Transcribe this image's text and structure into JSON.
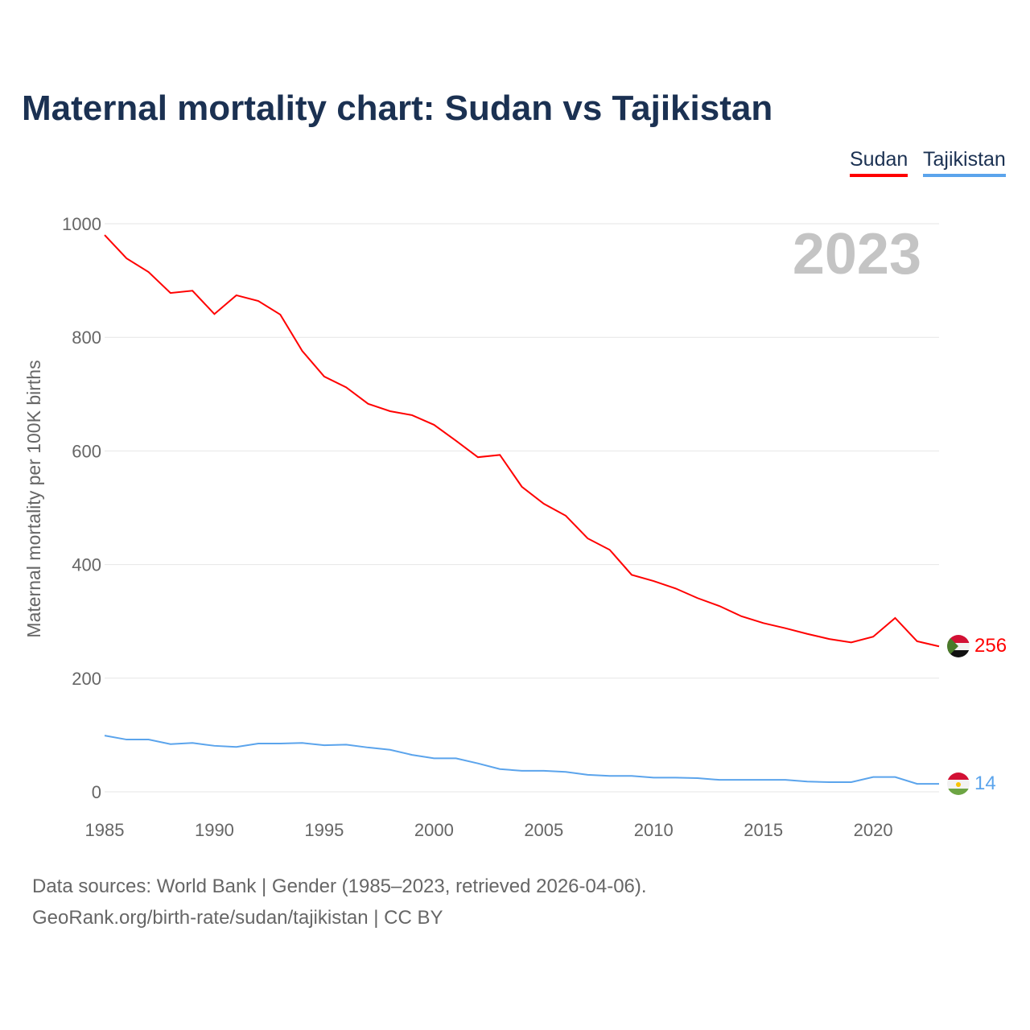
{
  "title": "Maternal mortality chart: Sudan vs Tajikistan",
  "footer": {
    "line1": "Data sources: World Bank | Gender (1985–2023, retrieved 2026-04-06).",
    "line2": "GeoRank.org/birth-rate/sudan/tajikistan | CC BY"
  },
  "chart_data": {
    "type": "line",
    "title": "Maternal mortality chart: Sudan vs Tajikistan",
    "ylabel": "Maternal mortality per 100K births",
    "xlabel": "",
    "year_label": "2023",
    "ylim": [
      0,
      1000
    ],
    "xlim": [
      1985,
      2023
    ],
    "yticks": [
      "0",
      "200",
      "400",
      "600",
      "800",
      "1000"
    ],
    "xticks": [
      "1985",
      "1990",
      "1995",
      "2000",
      "2005",
      "2010",
      "2015",
      "2020"
    ],
    "grid": true,
    "legend": "top-right",
    "x": [
      1985,
      1986,
      1987,
      1988,
      1989,
      1990,
      1991,
      1992,
      1993,
      1994,
      1995,
      1996,
      1997,
      1998,
      1999,
      2000,
      2001,
      2002,
      2003,
      2004,
      2005,
      2006,
      2007,
      2008,
      2009,
      2010,
      2011,
      2012,
      2013,
      2014,
      2015,
      2016,
      2017,
      2018,
      2019,
      2020,
      2021,
      2022,
      2023
    ],
    "series": [
      {
        "name": "Sudan",
        "color": "#ff0000",
        "end_label": "256",
        "values": [
          980,
          939,
          915,
          878,
          882,
          841,
          874,
          864,
          840,
          776,
          731,
          712,
          683,
          670,
          663,
          646,
          618,
          589,
          593,
          537,
          507,
          486,
          446,
          426,
          382,
          371,
          358,
          341,
          327,
          309,
          297,
          288,
          278,
          269,
          263,
          273,
          306,
          265,
          256
        ]
      },
      {
        "name": "Tajikistan",
        "color": "#5ba4ec",
        "end_label": "14",
        "values": [
          99,
          92,
          92,
          84,
          86,
          81,
          79,
          85,
          85,
          86,
          82,
          83,
          78,
          74,
          65,
          59,
          59,
          50,
          40,
          37,
          37,
          35,
          30,
          28,
          28,
          25,
          25,
          24,
          21,
          21,
          21,
          21,
          18,
          17,
          17,
          26,
          26,
          14,
          14
        ]
      }
    ]
  }
}
